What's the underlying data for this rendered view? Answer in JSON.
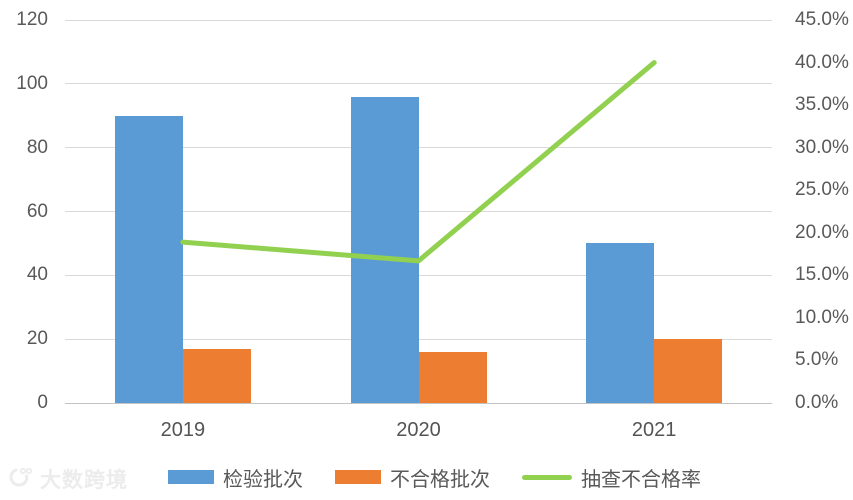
{
  "watermark": {
    "text": "大数跨境"
  },
  "chart_data": {
    "type": "bar",
    "subtype": "combo-bar-line-dual-axis",
    "title": "",
    "categories": [
      "2019",
      "2020",
      "2021"
    ],
    "series": [
      {
        "name": "检验批次",
        "type": "bar",
        "axis": "left",
        "color": "#5B9BD5",
        "values": [
          90,
          96,
          50
        ]
      },
      {
        "name": "不合格批次",
        "type": "bar",
        "axis": "left",
        "color": "#ED7D31",
        "values": [
          17,
          16,
          20
        ]
      },
      {
        "name": "抽查不合格率",
        "type": "line",
        "axis": "right",
        "color": "#92D050",
        "unit": "%",
        "values": [
          18.9,
          16.7,
          40.0
        ]
      }
    ],
    "left_axis": {
      "min": 0,
      "max": 120,
      "tick_labels": [
        "0",
        "20",
        "40",
        "60",
        "80",
        "100",
        "120"
      ]
    },
    "right_axis": {
      "min": 0,
      "max": 45,
      "tick_labels": [
        "0.0%",
        "5.0%",
        "10.0%",
        "15.0%",
        "20.0%",
        "25.0%",
        "30.0%",
        "35.0%",
        "40.0%",
        "45.0%"
      ]
    },
    "xlabel": "",
    "ylabel": "",
    "grid": true,
    "legend_position": "bottom",
    "colors": {
      "grid": "#d9d9d9",
      "axis_text": "#595959",
      "background": "#ffffff"
    }
  }
}
